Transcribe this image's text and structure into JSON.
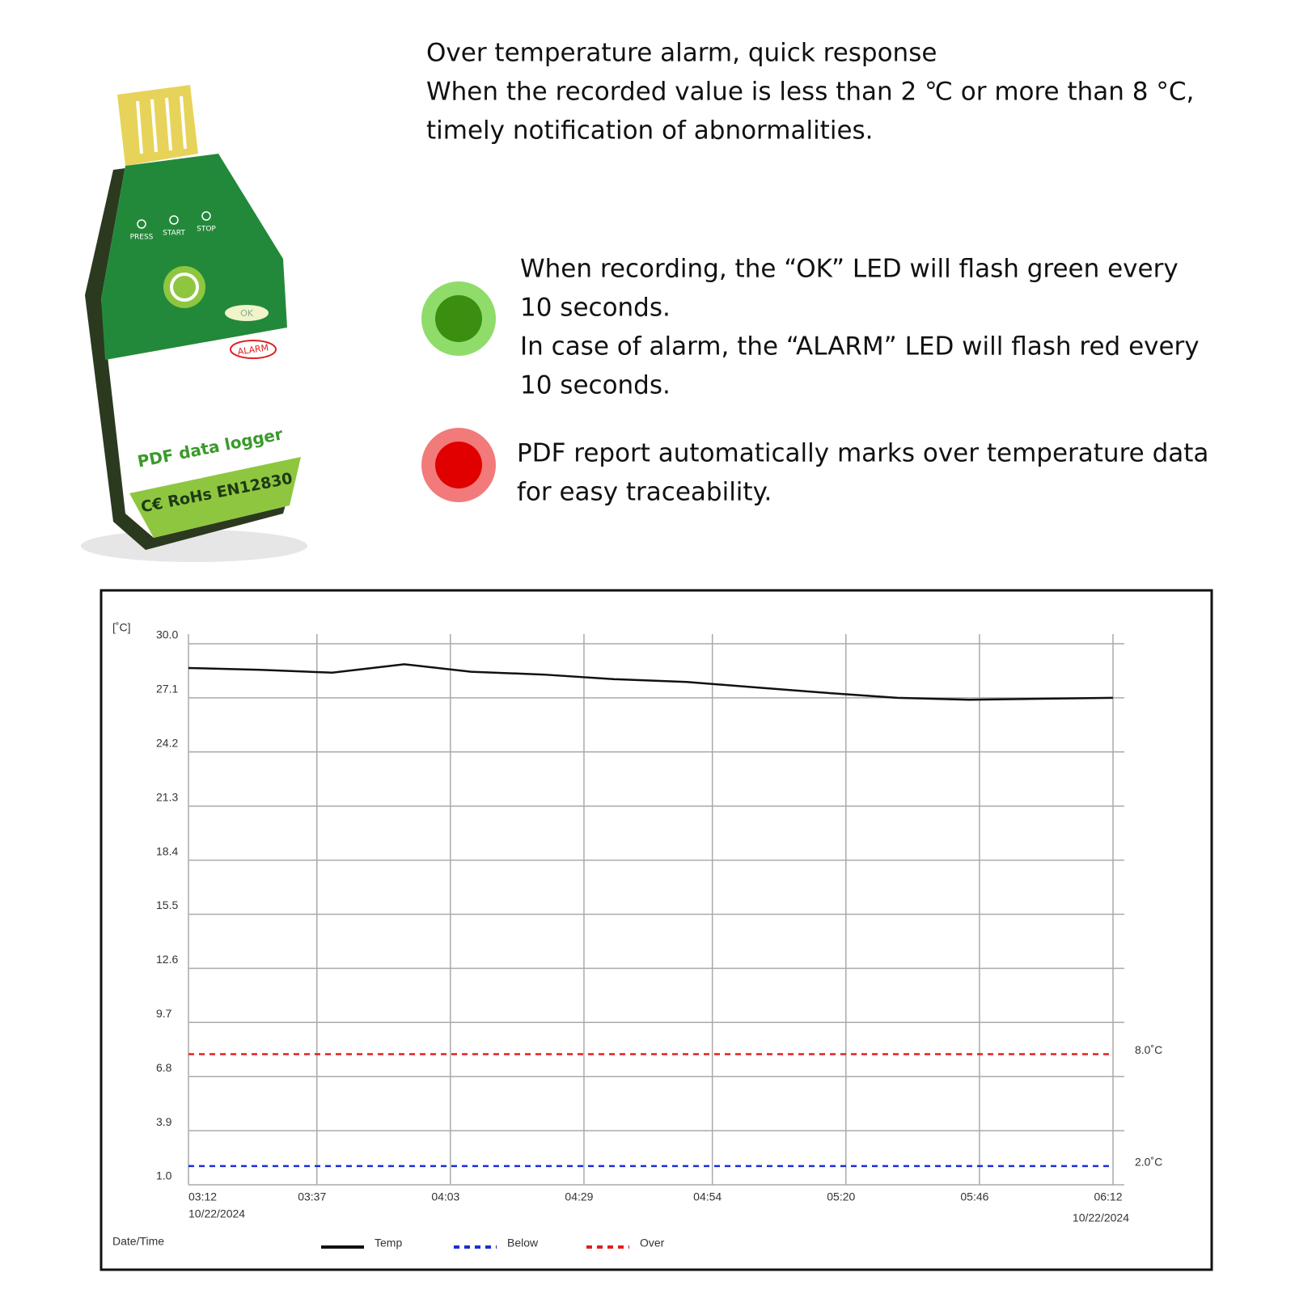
{
  "header": {
    "lines": [
      "Over temperature alarm, quick response",
      "When the recorded value is less than 2 ℃ or more than 8 °C,",
      "timely notification of abnormalities."
    ]
  },
  "features": [
    {
      "color": "#3a8f10",
      "ring": "#8fdc6a",
      "lines": [
        "When recording, the “OK” LED will flash green every",
        "10 seconds.",
        "In case of alarm, the “ALARM” LED will flash red every",
        "10 seconds."
      ]
    },
    {
      "color": "#e00000",
      "ring": "#f27a7a",
      "lines": [
        "PDF report automatically marks over temperature data",
        "for easy traceability."
      ]
    }
  ],
  "device": {
    "buttons": [
      "PRESS",
      "START",
      "STOP"
    ],
    "ok": "OK",
    "alarm": "ALARM",
    "name": "PDF data logger",
    "marks": "C€ RoHs EN12830"
  },
  "chart_data": {
    "type": "line",
    "ylabel": "[˚C]",
    "xlabel": "Date/Time",
    "xlim": [
      0,
      180
    ],
    "xticks": [
      {
        "value": 0,
        "label": "03:12"
      },
      {
        "value": 25,
        "label": "03:37"
      },
      {
        "value": 51,
        "label": "04:03"
      },
      {
        "value": 77,
        "label": "04:29"
      },
      {
        "value": 102,
        "label": "04:54"
      },
      {
        "value": 128,
        "label": "05:20"
      },
      {
        "value": 154,
        "label": "05:46"
      },
      {
        "value": 180,
        "label": "06:12"
      }
    ],
    "date_start": "10/22/2024",
    "date_end": "10/22/2024",
    "ylim": [
      1.0,
      30.0
    ],
    "yticks": [
      {
        "value": 1,
        "label": "1.0"
      },
      3.9,
      6.8,
      9.7,
      12.6,
      15.5,
      18.4,
      21.3,
      24.2,
      27.1,
      {
        "value": 30,
        "label": "30.0"
      }
    ],
    "grid": true,
    "series": [
      {
        "name": "Temp",
        "color": "#111111",
        "x": [
          0,
          14,
          28,
          42,
          55,
          69,
          83,
          97,
          111,
          125,
          138,
          152,
          166,
          180
        ],
        "values": [
          28.7,
          28.6,
          28.45,
          28.9,
          28.5,
          28.35,
          28.1,
          27.95,
          27.65,
          27.35,
          27.1,
          27.0,
          27.05,
          27.1
        ]
      }
    ],
    "thresholds": [
      {
        "name": "Below",
        "value": 2.0,
        "label": "2.0˚C",
        "color": "#1a2fd6"
      },
      {
        "name": "Over",
        "value": 8.0,
        "label": "8.0˚C",
        "color": "#e02020"
      }
    ]
  }
}
